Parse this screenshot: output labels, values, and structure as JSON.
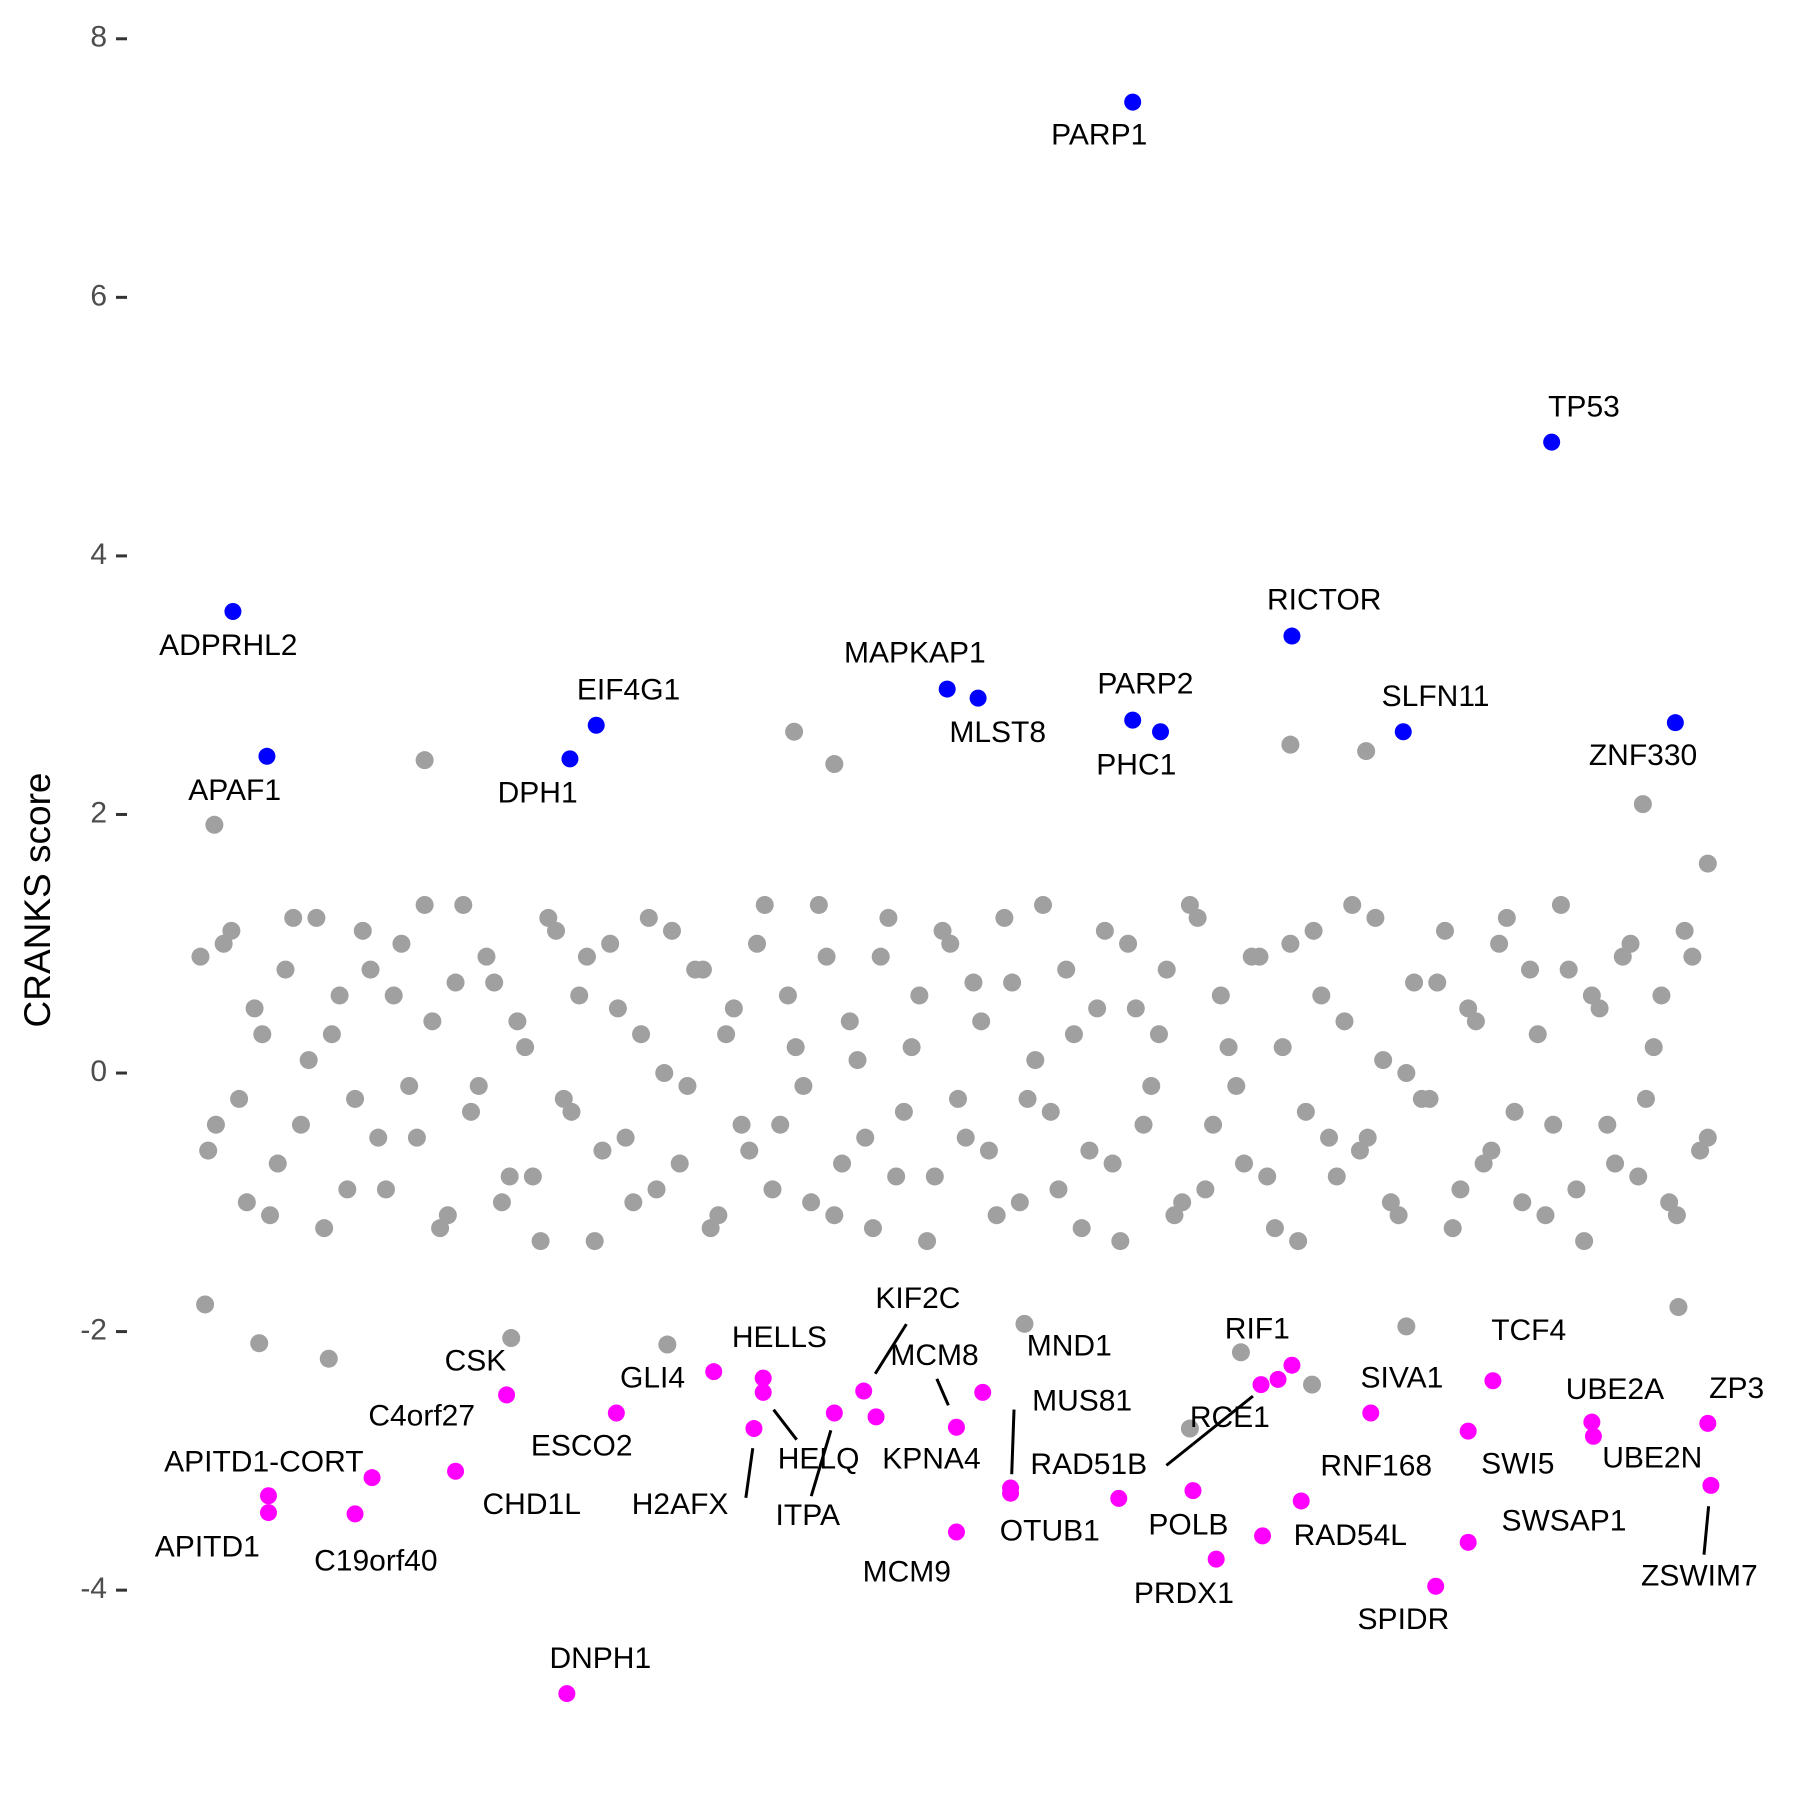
{
  "chart_data": {
    "type": "scatter",
    "ylabel": "CRANKS score",
    "xlim": [
      0,
      100
    ],
    "ylim": [
      -5.6,
      8.3
    ],
    "yticks": [
      -4,
      -2,
      0,
      2,
      4,
      6,
      8
    ],
    "series": [
      {
        "color": "#a0a0a0",
        "x": [
          1,
          2,
          3,
          4,
          5,
          6,
          7,
          8,
          9,
          10,
          11,
          12,
          13,
          14,
          15,
          16,
          17,
          18,
          19,
          20,
          21,
          22,
          23,
          24,
          25,
          26,
          27,
          28,
          29,
          30,
          31,
          32,
          33,
          34,
          35,
          36,
          37,
          38,
          39,
          40,
          41,
          42,
          43,
          44,
          45,
          46,
          47,
          48,
          49,
          50,
          51,
          52,
          53,
          54,
          55,
          56,
          57,
          58,
          59,
          60,
          61,
          62,
          63,
          64,
          65,
          66,
          67,
          68,
          69,
          70,
          71,
          72,
          73,
          74,
          75,
          76,
          77,
          78,
          79,
          80,
          81,
          82,
          83,
          84,
          85,
          86,
          87,
          88,
          89,
          90,
          91,
          92,
          93,
          94,
          95,
          96,
          97,
          98,
          1.5,
          2.5,
          3.5,
          4.5,
          5.5,
          6.5,
          7.5,
          8.5,
          9.5,
          10.5,
          11.5,
          12.5,
          13.5,
          14.5,
          15.5,
          16.5,
          17.5,
          18.5,
          19.5,
          20.5,
          21.5,
          22.5,
          23.5,
          24.5,
          25.5,
          26.5,
          27.5,
          28.5,
          29.5,
          30.5,
          31.5,
          32.5,
          33.5,
          34.5,
          35.5,
          36.5,
          37.5,
          38.5,
          39.5,
          40.5,
          41.5,
          42.5,
          43.5,
          44.5,
          45.5,
          46.5,
          47.5,
          48.5,
          49.5,
          50.5,
          51.5,
          52.5,
          53.5,
          54.5,
          55.5,
          56.5,
          57.5,
          58.5,
          59.5,
          60.5,
          61.5,
          62.5,
          63.5,
          64.5,
          65.5,
          66.5,
          67.5,
          68.5,
          69.5,
          70.5,
          71.5,
          72.5,
          73.5,
          74.5,
          75.5,
          76.5,
          77.5,
          78.5,
          79.5,
          80.5,
          81.5,
          82.5,
          83.5,
          84.5,
          85.5,
          86.5,
          87.5,
          88.5,
          89.5,
          90.5,
          91.5,
          92.5,
          93.5,
          94.5,
          95.5,
          96.5,
          97.5,
          98.5,
          15.5,
          39.4,
          42,
          71.5,
          76.4,
          94.3,
          1.3,
          4.8,
          9.3,
          21.1,
          31.2,
          54.3,
          68.3,
          72.9,
          65,
          79,
          96.6,
          98.5,
          1.9
        ],
        "values": [
          0.9,
          -0.4,
          1.1,
          -1.0,
          0.3,
          -0.7,
          1.2,
          0.1,
          -1.2,
          0.6,
          -0.2,
          0.8,
          -0.9,
          1.0,
          -0.5,
          0.4,
          -1.1,
          1.3,
          -0.1,
          0.7,
          -0.8,
          0.2,
          -1.3,
          1.1,
          -0.3,
          0.9,
          -0.6,
          0.5,
          -1.0,
          1.2,
          0.0,
          -0.7,
          0.8,
          -1.2,
          0.3,
          -0.4,
          1.0,
          -0.9,
          0.6,
          -0.1,
          1.3,
          -1.1,
          0.4,
          -0.5,
          0.9,
          -0.8,
          0.2,
          -1.3,
          1.1,
          -0.2,
          0.7,
          -0.6,
          1.2,
          -1.0,
          0.1,
          -0.3,
          0.8,
          -1.2,
          0.5,
          -0.7,
          1.0,
          -0.4,
          0.3,
          -1.1,
          1.3,
          -0.9,
          0.6,
          -0.1,
          0.9,
          -0.8,
          0.2,
          -1.3,
          1.1,
          -0.5,
          0.4,
          -0.6,
          1.2,
          -1.0,
          0.0,
          -0.2,
          0.7,
          -1.2,
          0.5,
          -0.7,
          1.0,
          -0.3,
          0.8,
          -1.1,
          1.3,
          -0.9,
          0.6,
          -0.4,
          0.9,
          -0.8,
          0.2,
          -1.0,
          1.1,
          -0.6,
          -0.6,
          1.0,
          -0.2,
          0.5,
          -1.1,
          0.8,
          -0.4,
          1.2,
          0.3,
          -0.9,
          1.1,
          -0.5,
          0.6,
          -0.1,
          1.3,
          -1.2,
          0.7,
          -0.3,
          0.9,
          -1.0,
          0.4,
          -0.8,
          1.2,
          -0.2,
          0.6,
          -1.3,
          1.0,
          -0.5,
          0.3,
          -0.9,
          1.1,
          -0.1,
          0.8,
          -1.1,
          0.5,
          -0.6,
          1.3,
          -0.4,
          0.2,
          -1.0,
          0.9,
          -0.7,
          0.1,
          -1.2,
          1.2,
          -0.3,
          0.6,
          -0.8,
          1.0,
          -0.5,
          0.4,
          -1.1,
          0.7,
          -0.2,
          1.3,
          -0.9,
          0.3,
          -0.6,
          1.1,
          -1.3,
          0.5,
          -0.1,
          0.8,
          -1.0,
          1.2,
          -0.4,
          0.2,
          -0.7,
          0.9,
          -1.2,
          1.0,
          -0.3,
          0.6,
          -0.8,
          1.3,
          -0.5,
          0.1,
          -1.1,
          0.7,
          -0.2,
          1.1,
          -0.9,
          0.4,
          -0.6,
          1.2,
          -1.0,
          0.3,
          -0.4,
          0.8,
          -1.3,
          0.5,
          -0.7,
          1.0,
          -0.2,
          0.6,
          -1.1,
          0.9,
          -0.5,
          2.42,
          2.64,
          2.39,
          2.54,
          2.49,
          2.08,
          -1.79,
          -2.09,
          -2.21,
          -2.05,
          -2.1,
          -1.94,
          -2.16,
          -2.41,
          -2.75,
          -1.96,
          -1.81,
          1.62,
          1.92
        ]
      },
      {
        "color": "#0000ff",
        "labels": [
          "PARP1",
          "TP53",
          "ADPRHL2",
          "RICTOR",
          "MAPKAP1",
          "MLST8",
          "PARP2",
          "PHC1",
          "SLFN11",
          "ZNF330",
          "EIF4G1",
          "DPH1",
          "APAF1"
        ],
        "x": [
          61.3,
          88.4,
          3.1,
          71.6,
          49.3,
          51.3,
          61.3,
          63.1,
          78.8,
          96.4,
          26.6,
          24.9,
          5.3
        ],
        "values": [
          7.51,
          4.88,
          3.57,
          3.38,
          2.97,
          2.9,
          2.73,
          2.64,
          2.64,
          2.71,
          2.69,
          2.43,
          2.45
        ]
      },
      {
        "color": "#ff00ff",
        "labels": [
          "DNPH1",
          "APITD1",
          "APITD1-CORT",
          "C19orf40",
          "C4orf27",
          "CHD1L",
          "CSK",
          "ESCO2",
          "GLI4",
          "HELLS",
          "HELQ",
          "H2AFX",
          "ITPA",
          "KIF2C",
          "KPNA4",
          "MCM8",
          "MND1",
          "MCM9",
          "MUS81",
          "OTUB1",
          "RAD51B",
          "RCE1",
          "RIF1",
          null,
          "POLB",
          "PRDX1",
          "RAD54L",
          "RNF168",
          "SIVA1",
          "SPIDR",
          "TCF4",
          "SWI5",
          "SWSAP1",
          "UBE2A",
          "UBE2N",
          "ZP3",
          "ZSWIM7"
        ],
        "x": [
          24.7,
          5.4,
          5.4,
          11.0,
          12.1,
          17.5,
          20.8,
          27.9,
          34.2,
          37.4,
          37.4,
          36.8,
          42.0,
          43.9,
          44.7,
          49.9,
          51.6,
          49.9,
          53.4,
          53.4,
          60.4,
          69.6,
          71.6,
          70.7,
          65.2,
          66.7,
          69.7,
          72.2,
          76.7,
          80.9,
          84.6,
          83.0,
          83.0,
          91.0,
          91.1,
          98.5,
          98.7
        ],
        "values": [
          -4.8,
          -3.4,
          -3.27,
          -3.41,
          -3.13,
          -3.08,
          -2.49,
          -2.63,
          -2.31,
          -2.36,
          -2.47,
          -2.75,
          -2.63,
          -2.46,
          -2.66,
          -2.74,
          -2.47,
          -3.55,
          -3.21,
          -3.25,
          -3.29,
          -2.41,
          -2.26,
          -2.37,
          -3.23,
          -3.76,
          -3.58,
          -3.31,
          -2.63,
          -3.97,
          -2.38,
          -2.77,
          -3.63,
          -2.7,
          -2.81,
          -2.71,
          -3.19
        ]
      }
    ]
  }
}
